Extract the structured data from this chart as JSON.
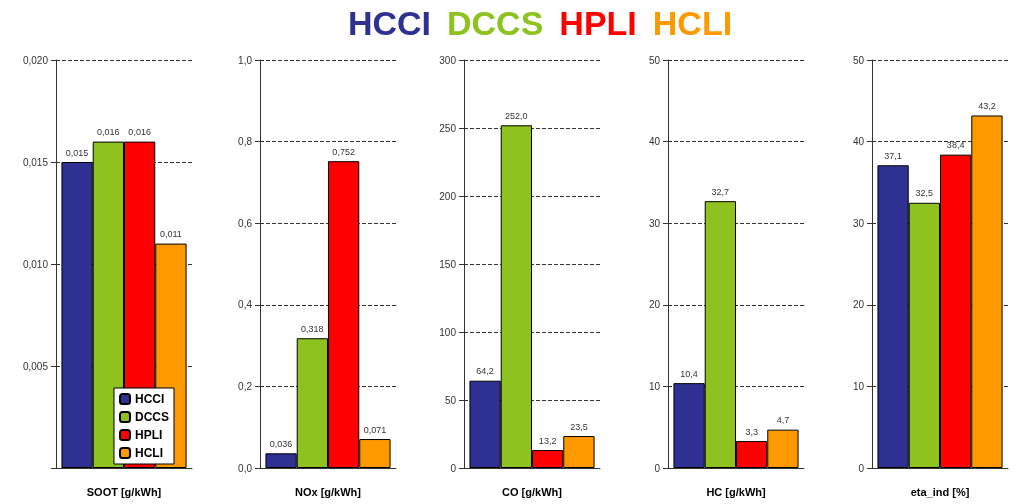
{
  "chart_data": [
    {
      "type": "bar",
      "xlabel": "SOOT [g/kWh]",
      "categories": [
        null
      ],
      "ylim": [
        0,
        0.02
      ],
      "yticks": [
        {
          "value": 0,
          "label": null
        },
        {
          "value": 0.005,
          "label": "0,005"
        },
        {
          "value": 0.01,
          "label": "0,010"
        },
        {
          "value": 0.015,
          "label": "0,015"
        },
        {
          "value": 0.02,
          "label": "0,020"
        }
      ],
      "grid": "y",
      "legend": "bottom right",
      "series": [
        {
          "name": "HCCI",
          "color": "#2e3192",
          "values": [
            0.015
          ],
          "value_labels": [
            "0,015"
          ]
        },
        {
          "name": "DCCS",
          "color": "#8dc21f",
          "values": [
            0.016
          ],
          "value_labels": [
            "0,016"
          ]
        },
        {
          "name": "HPLI",
          "color": "#ff0000",
          "values": [
            0.016
          ],
          "value_labels": [
            "0,016"
          ]
        },
        {
          "name": "HCLI",
          "color": "#ff9900",
          "values": [
            0.011
          ],
          "value_labels": [
            "0,011"
          ]
        }
      ]
    },
    {
      "type": "bar",
      "xlabel": "NOx [g/kWh]",
      "categories": [
        null
      ],
      "ylim": [
        0,
        1
      ],
      "yticks": [
        {
          "value": 0,
          "label": "0,0"
        },
        {
          "value": 0.2,
          "label": "0,2"
        },
        {
          "value": 0.4,
          "label": "0,4"
        },
        {
          "value": 0.6,
          "label": "0,6"
        },
        {
          "value": 0.8,
          "label": "0,8"
        },
        {
          "value": 1,
          "label": "1,0"
        }
      ],
      "grid": "y",
      "series": [
        {
          "color": "#2e3192",
          "values": [
            0.036
          ],
          "value_labels": [
            "0,036"
          ]
        },
        {
          "color": "#8dc21f",
          "values": [
            0.318
          ],
          "value_labels": [
            "0,318"
          ]
        },
        {
          "color": "#ff0000",
          "values": [
            0.752
          ],
          "value_labels": [
            "0,752"
          ]
        },
        {
          "color": "#ff9900",
          "values": [
            0.071
          ],
          "value_labels": [
            "0,071"
          ]
        }
      ]
    },
    {
      "type": "bar",
      "xlabel": "CO [g/kWh]",
      "categories": [
        null
      ],
      "ylim": [
        0,
        300
      ],
      "yticks": [
        0,
        50,
        100,
        150,
        200,
        250,
        300
      ],
      "grid": "y",
      "series": [
        {
          "color": "#2e3192",
          "values": [
            64.2
          ],
          "value_labels": [
            "64,2"
          ]
        },
        {
          "color": "#8dc21f",
          "values": [
            252.0
          ],
          "value_labels": [
            "252,0"
          ]
        },
        {
          "color": "#ff0000",
          "values": [
            13.2
          ],
          "value_labels": [
            "13,2"
          ]
        },
        {
          "color": "#ff9900",
          "values": [
            23.5
          ],
          "value_labels": [
            "23,5"
          ]
        }
      ]
    },
    {
      "type": "bar",
      "xlabel": "HC [g/kWh]",
      "categories": [
        null
      ],
      "ylim": [
        0,
        50
      ],
      "yticks": [
        0,
        10,
        20,
        30,
        40,
        50
      ],
      "grid": "y",
      "series": [
        {
          "color": "#2e3192",
          "values": [
            10.4
          ],
          "value_labels": [
            "10,4"
          ]
        },
        {
          "color": "#8dc21f",
          "values": [
            32.7
          ],
          "value_labels": [
            "32,7"
          ]
        },
        {
          "color": "#ff0000",
          "values": [
            3.3
          ],
          "value_labels": [
            "3,3"
          ]
        },
        {
          "color": "#ff9900",
          "values": [
            4.7
          ],
          "value_labels": [
            "4,7"
          ]
        }
      ]
    },
    {
      "type": "bar",
      "xlabel": "eta_ind [%]",
      "categories": [
        null
      ],
      "ylim": [
        0,
        50
      ],
      "yticks": [
        0,
        10,
        20,
        30,
        40,
        50
      ],
      "grid": "y",
      "series": [
        {
          "color": "#2e3192",
          "values": [
            37.1
          ],
          "value_labels": [
            "37,1"
          ]
        },
        {
          "color": "#8dc21f",
          "values": [
            32.5
          ],
          "value_labels": [
            "32,5"
          ]
        },
        {
          "color": "#ff0000",
          "values": [
            38.4
          ],
          "value_labels": [
            "38,4"
          ]
        },
        {
          "color": "#ff9900",
          "values": [
            43.2
          ],
          "value_labels": [
            "43,2"
          ]
        }
      ]
    }
  ]
}
